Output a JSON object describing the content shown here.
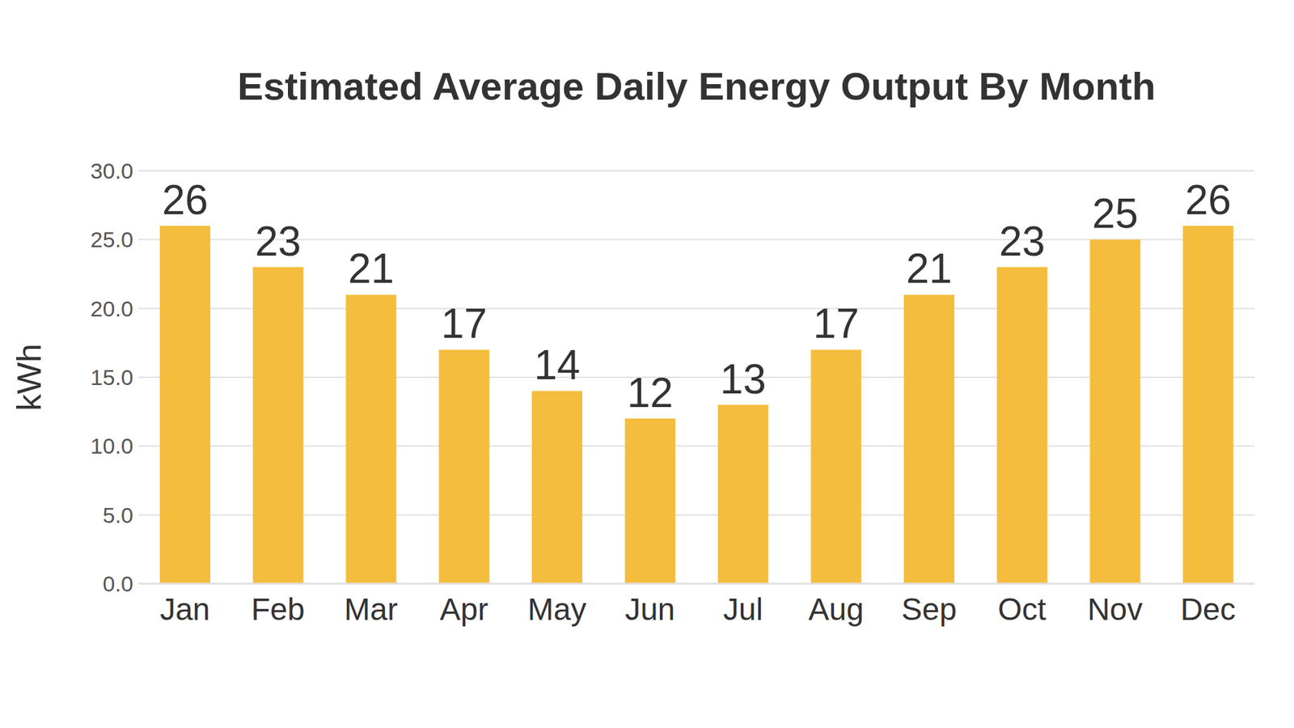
{
  "chart_data": {
    "type": "bar",
    "title": "Estimated Average Daily Energy Output By Month",
    "y_label": "kWh",
    "categories": [
      "Jan",
      "Feb",
      "Mar",
      "Apr",
      "May",
      "Jun",
      "Jul",
      "Aug",
      "Sep",
      "Oct",
      "Nov",
      "Dec"
    ],
    "values": [
      26,
      23,
      21,
      17,
      14,
      12,
      13,
      17,
      21,
      23,
      25,
      26
    ],
    "color": "#f5bd3e",
    "ylim": [
      0,
      30
    ],
    "yticks": [
      {
        "value": 0,
        "label": "0.0"
      },
      {
        "value": 5,
        "label": "5.0"
      },
      {
        "value": 10,
        "label": "10.0"
      },
      {
        "value": 15,
        "label": "15.0"
      },
      {
        "value": 20,
        "label": "20.0"
      },
      {
        "value": 25,
        "label": "25.0"
      },
      {
        "value": 30,
        "label": "30.0"
      }
    ],
    "grid": true,
    "data_labels": true
  }
}
